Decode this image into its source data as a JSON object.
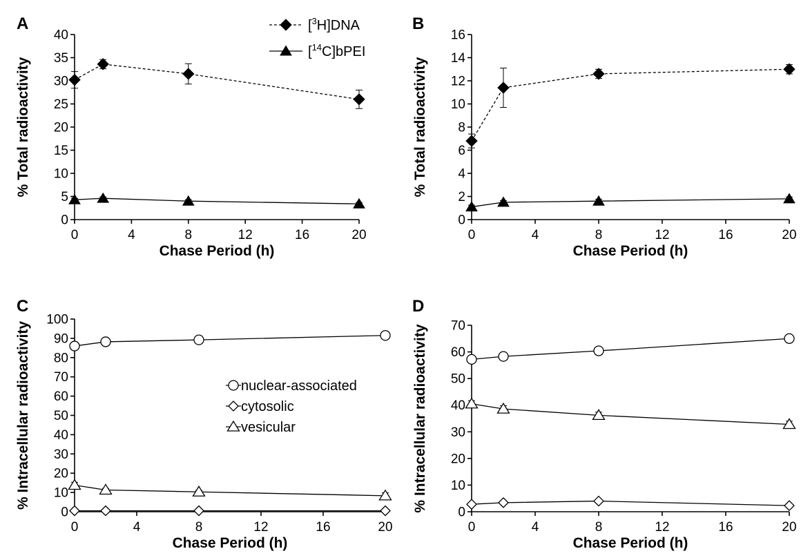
{
  "chart_data": [
    {
      "panel": "A",
      "type": "line",
      "x": [
        0,
        2,
        8,
        20
      ],
      "xlabel": "Chase Period (h)",
      "ylabel": "% Total radioactivity",
      "xlim": [
        0,
        20
      ],
      "ylim": [
        0,
        40
      ],
      "xticks": [
        "0",
        "4",
        "8",
        "12",
        "16",
        "20"
      ],
      "yticks": [
        "0",
        "5",
        "10",
        "15",
        "20",
        "25",
        "30",
        "35",
        "40"
      ],
      "grid": false,
      "legend": [
        {
          "pre": "[",
          "sup": "3",
          "post": "H]DNA"
        },
        {
          "pre": "[",
          "sup": "14",
          "post": "C]bPEI"
        }
      ],
      "series": [
        {
          "name": "[3H]DNA",
          "marker": "filled-diamond",
          "line": "dashed",
          "values": [
            30.2,
            33.6,
            31.5,
            26.0
          ],
          "errors": [
            1.8,
            1.0,
            2.2,
            2.0
          ]
        },
        {
          "name": "[14C]bPEI",
          "marker": "filled-triangle",
          "line": "solid",
          "values": [
            4.3,
            4.6,
            4.0,
            3.4
          ],
          "errors": [
            0.3,
            0.3,
            0.3,
            0.3
          ]
        }
      ]
    },
    {
      "panel": "B",
      "type": "line",
      "x": [
        0,
        2,
        8,
        20
      ],
      "xlabel": "Chase Period (h)",
      "ylabel": "% Total radioactivity",
      "xlim": [
        0,
        20
      ],
      "ylim": [
        0,
        16
      ],
      "xticks": [
        "0",
        "4",
        "8",
        "12",
        "16",
        "20"
      ],
      "yticks": [
        "0",
        "2",
        "4",
        "6",
        "8",
        "10",
        "12",
        "14",
        "16"
      ],
      "grid": false,
      "series": [
        {
          "name": "[3H]DNA",
          "marker": "filled-diamond",
          "line": "dashed",
          "values": [
            6.8,
            11.4,
            12.6,
            13.0
          ],
          "errors": [
            0.6,
            1.7,
            0.4,
            0.4
          ]
        },
        {
          "name": "[14C]bPEI",
          "marker": "filled-triangle",
          "line": "solid",
          "values": [
            1.1,
            1.5,
            1.6,
            1.8
          ],
          "errors": [
            0.15,
            0.15,
            0.15,
            0.15
          ]
        }
      ]
    },
    {
      "panel": "C",
      "type": "line",
      "x": [
        0,
        2,
        8,
        20
      ],
      "xlabel": "Chase Period (h)",
      "ylabel": "% Intracellular radioactivity",
      "xlim": [
        0,
        20
      ],
      "ylim": [
        0,
        100
      ],
      "xticks": [
        "0",
        "4",
        "8",
        "12",
        "16",
        "20"
      ],
      "yticks": [
        "0",
        "10",
        "20",
        "30",
        "40",
        "50",
        "60",
        "70",
        "80",
        "90",
        "100"
      ],
      "grid": false,
      "legend": [
        {
          "text": "nuclear-associated"
        },
        {
          "text": "cytosolic"
        },
        {
          "text": "vesicular"
        }
      ],
      "series": [
        {
          "name": "nuclear-associated",
          "marker": "open-circle",
          "line": "solid",
          "values": [
            86.0,
            88.2,
            89.2,
            91.5
          ]
        },
        {
          "name": "cytosolic",
          "marker": "open-diamond",
          "line": "solid",
          "values": [
            0.5,
            0.5,
            0.5,
            0.5
          ]
        },
        {
          "name": "vesicular",
          "marker": "open-triangle",
          "line": "solid",
          "values": [
            13.8,
            11.3,
            10.3,
            8.3
          ],
          "errors": [
            1.5,
            0.8,
            0.8,
            1.5
          ]
        }
      ]
    },
    {
      "panel": "D",
      "type": "line",
      "x": [
        0,
        2,
        8,
        20
      ],
      "xlabel": "Chase Period (h)",
      "ylabel": "% Intracellular radioactivity",
      "xlim": [
        0,
        20
      ],
      "ylim": [
        0,
        70
      ],
      "xticks": [
        "0",
        "4",
        "8",
        "12",
        "16",
        "20"
      ],
      "yticks": [
        "0",
        "10",
        "20",
        "30",
        "40",
        "50",
        "60",
        "70"
      ],
      "grid": false,
      "series": [
        {
          "name": "nuclear-associated",
          "marker": "open-circle",
          "line": "solid",
          "values": [
            57.2,
            58.3,
            60.4,
            65.0
          ]
        },
        {
          "name": "cytosolic",
          "marker": "open-diamond",
          "line": "solid",
          "values": [
            2.8,
            3.4,
            4.0,
            2.3
          ]
        },
        {
          "name": "vesicular",
          "marker": "open-triangle",
          "line": "solid",
          "values": [
            40.5,
            38.6,
            36.2,
            32.8
          ],
          "errors": [
            1.2,
            1.2,
            1.2,
            1.2
          ]
        }
      ]
    }
  ]
}
